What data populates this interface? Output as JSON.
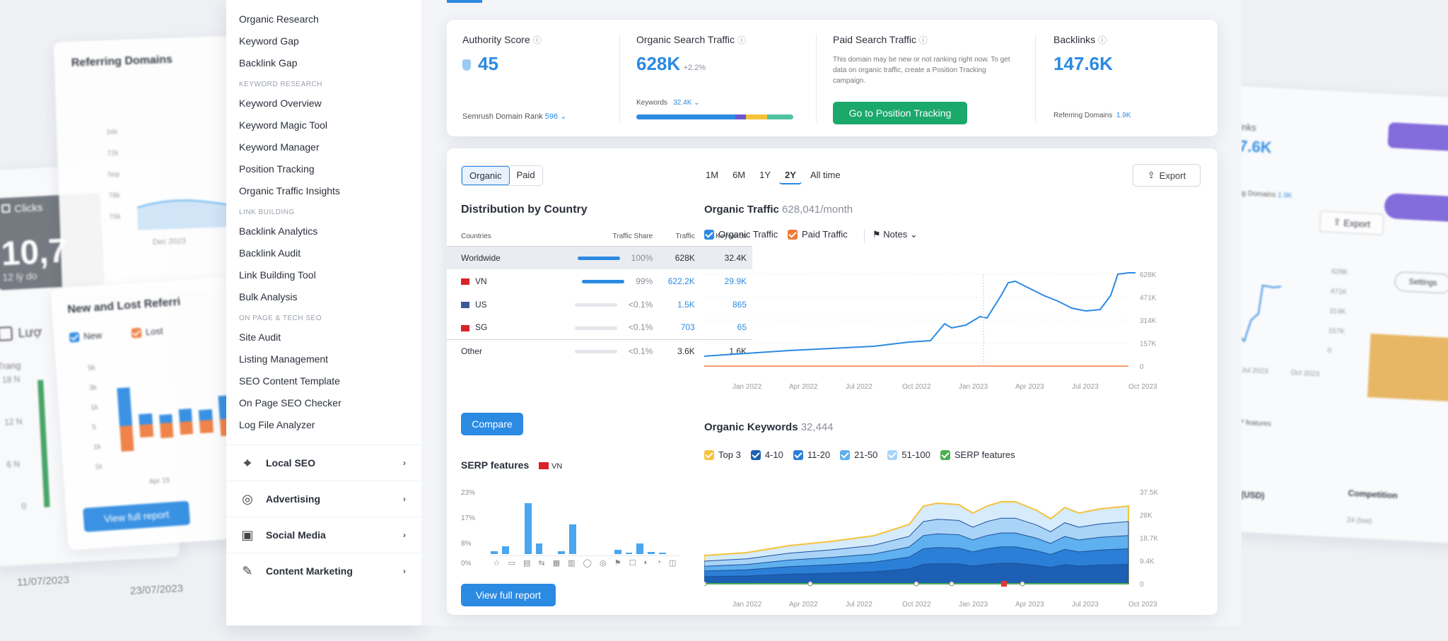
{
  "left_back_card": {
    "stat_label": "Clicks",
    "stat_value": "10,7",
    "stat_sub": "12 lỳ do",
    "toggle_label": "Lượ",
    "y_label": "Trang",
    "y_ticks": [
      "18 N",
      "12 N",
      "6 N",
      "0"
    ],
    "dates": [
      "11/07/2023",
      "23/07/2023"
    ]
  },
  "referring_domains_card": {
    "title": "Referring Domains",
    "y_ticks": [
      "34k",
      "72k",
      "5ep",
      "78k",
      "76k"
    ],
    "x_tick": "Dec 2023"
  },
  "new_lost_card": {
    "title": "New and Lost Referri",
    "legend": [
      {
        "label": "New"
      },
      {
        "label": "Lost"
      }
    ],
    "y_ticks": [
      "5k",
      "3k",
      "1k",
      "5",
      "1k",
      "1k"
    ],
    "x_tick": "Apr 15",
    "cta": "View full report",
    "bars": [
      {
        "up": 0.9,
        "down": 0.6
      },
      {
        "up": 0.25,
        "down": 0.3
      },
      {
        "up": 0.2,
        "down": 0.35
      },
      {
        "up": 0.3,
        "down": 0.3
      },
      {
        "up": 0.25,
        "down": 0.3
      },
      {
        "up": 0.55,
        "down": 0.4
      }
    ]
  },
  "sidebar": {
    "top_links": [
      "Organic Research",
      "Keyword Gap",
      "Backlink Gap"
    ],
    "groups": [
      {
        "heading": "KEYWORD RESEARCH",
        "links": [
          "Keyword Overview",
          "Keyword Magic Tool",
          "Keyword Manager",
          "Position Tracking",
          "Organic Traffic Insights"
        ]
      },
      {
        "heading": "LINK BUILDING",
        "links": [
          "Backlink Analytics",
          "Backlink Audit",
          "Link Building Tool",
          "Bulk Analysis"
        ]
      },
      {
        "heading": "ON PAGE & TECH SEO",
        "links": [
          "Site Audit",
          "Listing Management",
          "SEO Content Template",
          "On Page SEO Checker",
          "Log File Analyzer"
        ]
      }
    ],
    "sections": [
      {
        "label": "Local SEO",
        "icon": "pin-icon"
      },
      {
        "label": "Advertising",
        "icon": "target-icon"
      },
      {
        "label": "Social Media",
        "icon": "social-icon"
      },
      {
        "label": "Content Marketing",
        "icon": "pen-icon"
      }
    ]
  },
  "metrics": {
    "authority": {
      "label": "Authority Score",
      "value": "45",
      "footer_label": "Semrush Domain Rank",
      "footer_value": "596"
    },
    "organic": {
      "label": "Organic Search Traffic",
      "value": "628K",
      "delta": "+2.2%",
      "footer_label": "Keywords",
      "footer_value": "32.4K"
    },
    "paid": {
      "label": "Paid Search Traffic",
      "desc": "This domain may be new or not ranking right now. To get data on organic traffic, create a Position Tracking campaign.",
      "cta": "Go to Position Tracking"
    },
    "backlinks": {
      "label": "Backlinks",
      "value": "147.6K",
      "footer_label": "Referring Domains",
      "footer_value": "1.9K"
    }
  },
  "main": {
    "toggle": [
      "Organic",
      "Paid"
    ],
    "distribution": {
      "title": "Distribution by Country",
      "headers": [
        "Countries",
        "Traffic Share",
        "Traffic",
        "Keywords"
      ],
      "rows": [
        {
          "country": "Worldwide",
          "flag": "",
          "share": "100%",
          "traffic": "628K",
          "keywords": "32.4K",
          "bar": 1.0
        },
        {
          "country": "VN",
          "flag": "#d8232a",
          "share": "99%",
          "traffic": "622.2K",
          "keywords": "29.9K",
          "bar": 0.99
        },
        {
          "country": "US",
          "flag": "#3c5a9a",
          "share": "<0.1%",
          "traffic": "1.5K",
          "keywords": "865",
          "bar": 0.0
        },
        {
          "country": "SG",
          "flag": "#d8232a",
          "share": "<0.1%",
          "traffic": "703",
          "keywords": "65",
          "bar": 0.0
        },
        {
          "country": "Other",
          "flag": "",
          "share": "<0.1%",
          "traffic": "3.6K",
          "keywords": "1.6K",
          "bar": 0.0
        }
      ],
      "compare_label": "Compare"
    },
    "serp": {
      "title": "SERP features",
      "flag_label": "VN",
      "y_ticks": [
        "23%",
        "17%",
        "8%",
        "0%"
      ],
      "cta": "View full report",
      "bars": [
        0.05,
        0.15,
        0.0,
        0.95,
        0.2,
        0.0,
        0.05,
        0.55,
        0.0,
        0.0,
        0.0,
        0.08,
        0.02,
        0.2,
        0.04,
        0.03,
        0.0
      ]
    },
    "time_ranges": [
      "1M",
      "6M",
      "1Y",
      "2Y",
      "All time"
    ],
    "time_selected": "2Y",
    "export_label": "Export",
    "traffic_chart": {
      "title": "Organic Traffic",
      "subtitle": "628,041/month",
      "legend": [
        "Organic Traffic",
        "Paid Traffic"
      ],
      "notes_label": "Notes",
      "y_ticks": [
        "628K",
        "471K",
        "314K",
        "157K",
        "0"
      ],
      "x_ticks": [
        "Jan 2022",
        "Apr 2022",
        "Jul 2022",
        "Oct 2022",
        "Jan 2023",
        "Apr 2023",
        "Jul 2023",
        "Oct 2023"
      ]
    },
    "keywords_chart": {
      "title": "Organic Keywords",
      "subtitle": "32,444",
      "legend": [
        {
          "label": "Top 3",
          "color": "#f5c33b"
        },
        {
          "label": "4-10",
          "color": "#1d5fb3"
        },
        {
          "label": "11-20",
          "color": "#2b7fd6"
        },
        {
          "label": "21-50",
          "color": "#5fb0ee"
        },
        {
          "label": "51-100",
          "color": "#a9d4f7"
        },
        {
          "label": "SERP features",
          "color": "#4caf50"
        }
      ],
      "y_ticks": [
        "37.5K",
        "28K",
        "18.7K",
        "9.4K",
        "0"
      ],
      "x_ticks": [
        "Jan 2022",
        "Apr 2022",
        "Jul 2022",
        "Oct 2022",
        "Jan 2023",
        "Apr 2023",
        "Jul 2023",
        "Oct 2023"
      ]
    }
  },
  "right_back_card": {
    "label": "inks",
    "value": "7.6K",
    "footer": "ing Domains",
    "footer_value": "1.9K",
    "export_label": "Export",
    "y_ticks": [
      "628K",
      "471K",
      "314K",
      "157K",
      "0"
    ],
    "x_ticks": [
      "Jul 2023",
      "Oct 2023"
    ],
    "serp_label": "SERP features",
    "cpc_label": "CPC (USD)",
    "competition_label": "Competition",
    "competition_value": "24 (low)",
    "pill_label": "Settings"
  },
  "colors": {
    "accent": "#2b8ae2",
    "green": "#1aa86b",
    "purple": "#7b61d9",
    "orange": "#f07a3a"
  }
}
